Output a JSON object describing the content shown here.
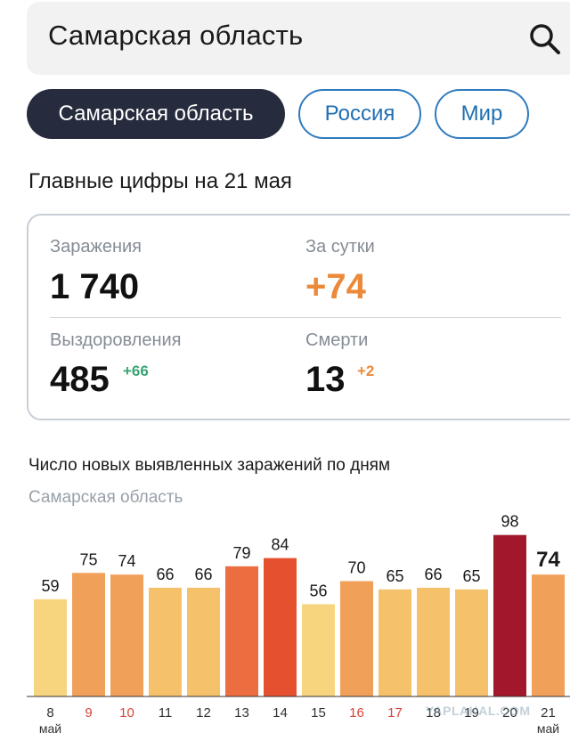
{
  "search": {
    "query": "Самарская область"
  },
  "tabs": [
    {
      "label": "Самарская область",
      "active": true
    },
    {
      "label": "Россия",
      "active": false
    },
    {
      "label": "Мир",
      "active": false
    }
  ],
  "summary": {
    "heading": "Главные цифры на 21 мая",
    "infections": {
      "label": "Заражения",
      "value": "1 740"
    },
    "per_day": {
      "label": "За сутки",
      "value": "+74"
    },
    "recoveries": {
      "label": "Выздоровления",
      "value": "485",
      "delta": "+66"
    },
    "deaths": {
      "label": "Смерти",
      "value": "13",
      "delta": "+2"
    }
  },
  "colors": {
    "accent_orange": "#ea8a3a",
    "green": "#3aa574",
    "tab_active": "#262c3d",
    "tab_outline": "#2f7bbd"
  },
  "watermark": "YAPLAKAL.COM",
  "chart_data": {
    "type": "bar",
    "title": "Число новых выявленных заражений по дням",
    "subtitle": "Самарская область",
    "categories": [
      "8",
      "9",
      "10",
      "11",
      "12",
      "13",
      "14",
      "15",
      "16",
      "17",
      "18",
      "19",
      "20",
      "21"
    ],
    "month_labels": [
      "май",
      "",
      "",
      "",
      "",
      "",
      "",
      "",
      "",
      "",
      "",
      "",
      "",
      "май"
    ],
    "weekend": [
      false,
      true,
      true,
      false,
      false,
      false,
      false,
      false,
      true,
      true,
      false,
      false,
      false,
      false
    ],
    "values": [
      59,
      75,
      74,
      66,
      66,
      79,
      84,
      56,
      70,
      65,
      66,
      65,
      98,
      74
    ],
    "colors": [
      "#f7d57f",
      "#f1a05a",
      "#f1a05a",
      "#f5c26b",
      "#f5c26b",
      "#ec6d3f",
      "#e5512f",
      "#f7d57f",
      "#f1a05a",
      "#f5c26b",
      "#f5c26b",
      "#f5c26b",
      "#a2182a",
      "#f1a05a"
    ],
    "highlight_last": true,
    "ylim": [
      0,
      100
    ],
    "grid": false
  }
}
